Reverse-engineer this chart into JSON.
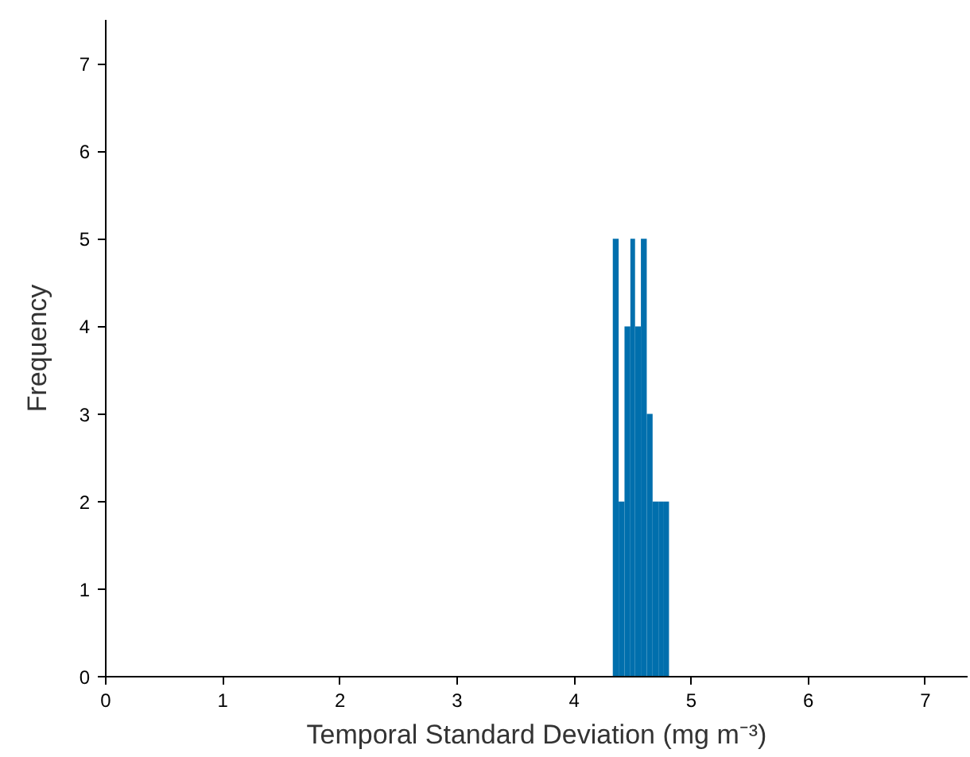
{
  "chart_data": {
    "type": "histogram",
    "xlabel": "Temporal Standard Deviation (mg m⁻³)",
    "ylabel": "Frequency",
    "bins": [
      4.33,
      4.38,
      4.43,
      4.48,
      4.52,
      4.57,
      4.62,
      4.67,
      4.72,
      4.76,
      4.81
    ],
    "values": [
      5,
      2,
      4,
      5,
      4,
      5,
      3,
      2,
      2,
      2
    ],
    "color": "#006fad",
    "xlim": [
      0,
      7.36
    ],
    "ylim": [
      0,
      7.5
    ],
    "xticks": [
      0,
      1,
      2,
      3,
      4,
      5,
      6,
      7
    ],
    "yticks": [
      0,
      1,
      2,
      3,
      4,
      5,
      6,
      7
    ],
    "grid": false
  }
}
